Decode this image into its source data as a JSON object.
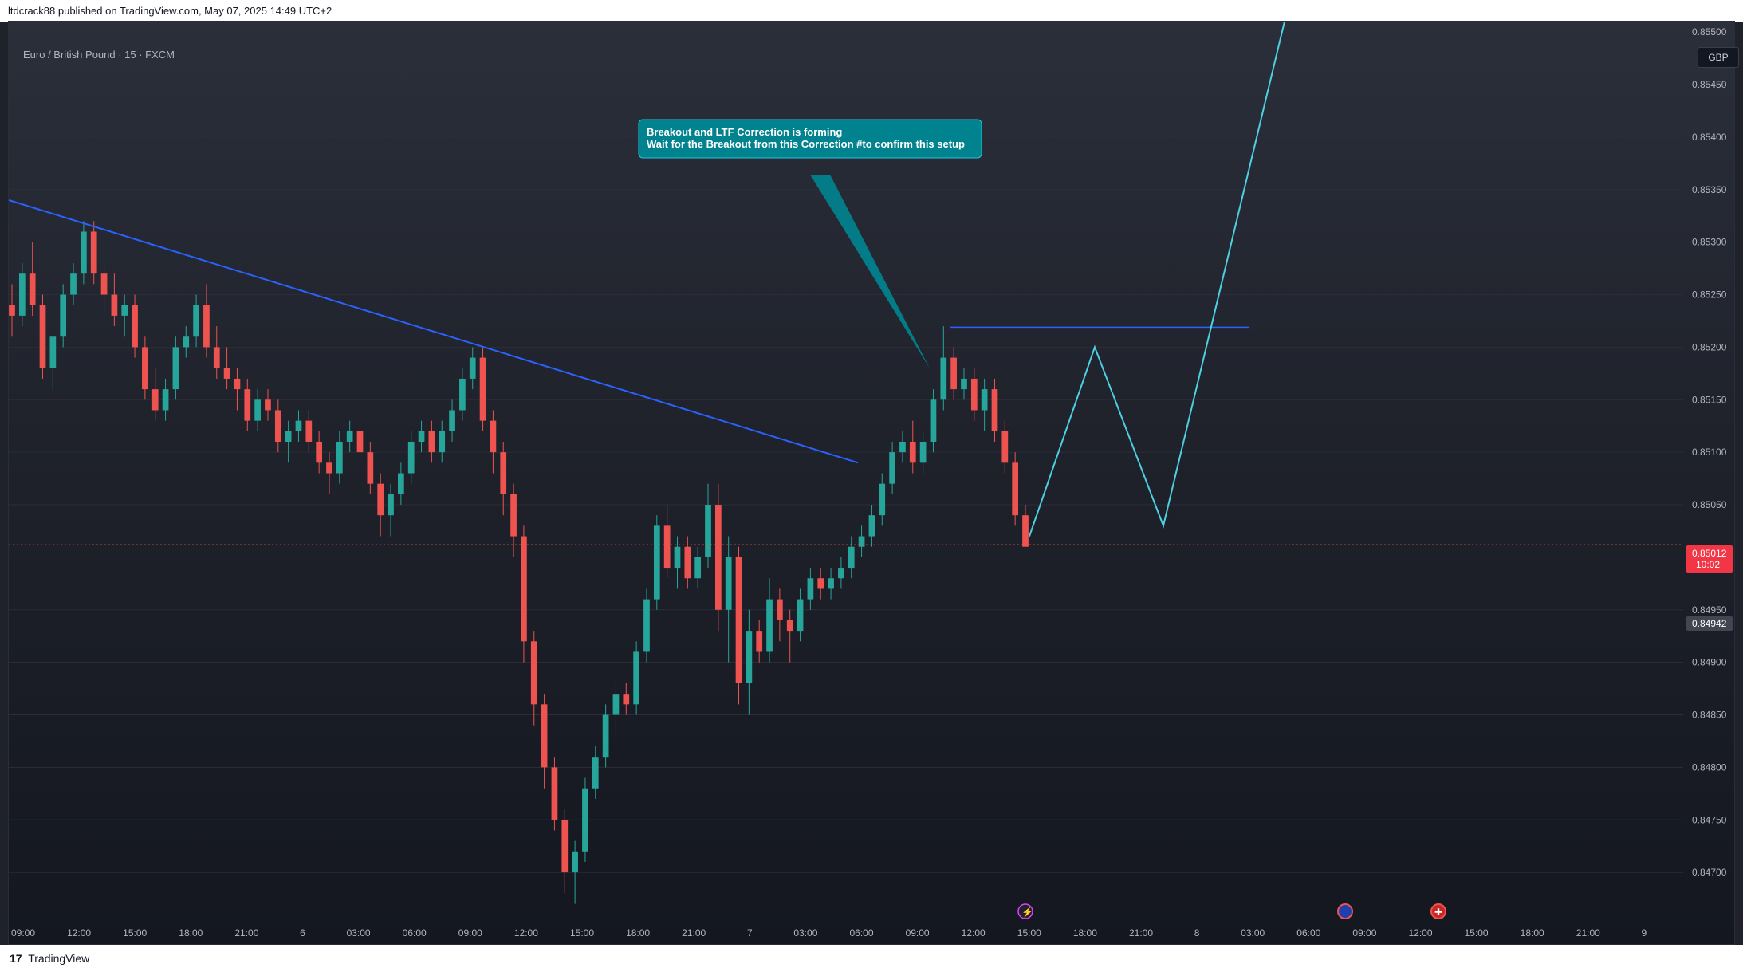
{
  "header": {
    "published_text": "ltdcrack88 published on TradingView.com, May 07, 2025 14:49 UTC+2"
  },
  "symbol": {
    "label": "Euro / British Pound · 15 · FXCM"
  },
  "currency": {
    "label": "GBP"
  },
  "footer": {
    "logo_text": "17",
    "brand": "TradingView"
  },
  "annotation": {
    "line1": "Breakout and LTF Correction is forming",
    "line2": "Wait for the Breakout from this Correction #to confirm this setup"
  },
  "price_badges": {
    "current_price": "0.85012",
    "countdown": "10:02",
    "marker_price": "0.84942"
  },
  "colors": {
    "up": "#26a69a",
    "down": "#ef5350",
    "trendline": "#2962ff",
    "projection": "#4dd0e1",
    "callout": "#00838f"
  },
  "icons": [
    "lightning-event-icon",
    "eu-flag-event-icon",
    "uk-flag-event-icon"
  ],
  "chart_data": {
    "type": "candlestick",
    "title": "Euro / British Pound · 15 · FXCM",
    "xlabel": "",
    "ylabel": "",
    "ylim": [
      0.8465,
      0.8551
    ],
    "y_ticks": [
      "0.85500",
      "0.85450",
      "0.85400",
      "0.85350",
      "0.85300",
      "0.85250",
      "0.85200",
      "0.85150",
      "0.85100",
      "0.85050",
      "0.84950",
      "0.84900",
      "0.84850",
      "0.84800",
      "0.84750",
      "0.84700"
    ],
    "x_ticks": [
      "09:00",
      "12:00",
      "15:00",
      "18:00",
      "21:00",
      "6",
      "03:00",
      "06:00",
      "09:00",
      "12:00",
      "15:00",
      "18:00",
      "21:00",
      "7",
      "03:00",
      "06:00",
      "09:00",
      "12:00",
      "15:00",
      "18:00",
      "21:00",
      "8",
      "03:00",
      "06:00",
      "09:00",
      "12:00",
      "15:00",
      "18:00",
      "21:00",
      "9"
    ],
    "candles_ohlc": [
      [
        0.8524,
        0.8526,
        0.8521,
        0.8523
      ],
      [
        0.8523,
        0.8528,
        0.8522,
        0.8527
      ],
      [
        0.8527,
        0.853,
        0.8523,
        0.8524
      ],
      [
        0.8524,
        0.8525,
        0.8517,
        0.8518
      ],
      [
        0.8518,
        0.852,
        0.8516,
        0.8521
      ],
      [
        0.8521,
        0.8526,
        0.852,
        0.8525
      ],
      [
        0.8525,
        0.8528,
        0.8524,
        0.8527
      ],
      [
        0.8527,
        0.8532,
        0.8526,
        0.8531
      ],
      [
        0.8531,
        0.8532,
        0.8526,
        0.8527
      ],
      [
        0.8527,
        0.8528,
        0.8523,
        0.8525
      ],
      [
        0.8525,
        0.8527,
        0.8522,
        0.8523
      ],
      [
        0.8523,
        0.8525,
        0.8521,
        0.8524
      ],
      [
        0.8524,
        0.8525,
        0.8519,
        0.852
      ],
      [
        0.852,
        0.8521,
        0.8515,
        0.8516
      ],
      [
        0.8516,
        0.8518,
        0.8513,
        0.8514
      ],
      [
        0.8514,
        0.8517,
        0.8513,
        0.8516
      ],
      [
        0.8516,
        0.8521,
        0.8515,
        0.852
      ],
      [
        0.852,
        0.8522,
        0.8519,
        0.8521
      ],
      [
        0.8521,
        0.8525,
        0.852,
        0.8524
      ],
      [
        0.8524,
        0.8526,
        0.8519,
        0.852
      ],
      [
        0.852,
        0.8522,
        0.8517,
        0.8518
      ],
      [
        0.8518,
        0.852,
        0.8516,
        0.8517
      ],
      [
        0.8517,
        0.8518,
        0.8514,
        0.8516
      ],
      [
        0.8516,
        0.8517,
        0.8512,
        0.8513
      ],
      [
        0.8513,
        0.8516,
        0.8512,
        0.8515
      ],
      [
        0.8515,
        0.8516,
        0.8513,
        0.8514
      ],
      [
        0.8514,
        0.8515,
        0.851,
        0.8511
      ],
      [
        0.8511,
        0.8513,
        0.8509,
        0.8512
      ],
      [
        0.8512,
        0.8514,
        0.8511,
        0.8513
      ],
      [
        0.8513,
        0.8514,
        0.851,
        0.8511
      ],
      [
        0.8511,
        0.8512,
        0.8508,
        0.8509
      ],
      [
        0.8509,
        0.851,
        0.8506,
        0.8508
      ],
      [
        0.8508,
        0.8512,
        0.8507,
        0.8511
      ],
      [
        0.8511,
        0.8513,
        0.851,
        0.8512
      ],
      [
        0.8512,
        0.8513,
        0.8509,
        0.851
      ],
      [
        0.851,
        0.8511,
        0.8506,
        0.8507
      ],
      [
        0.8507,
        0.8508,
        0.8502,
        0.8504
      ],
      [
        0.8504,
        0.8507,
        0.8502,
        0.8506
      ],
      [
        0.8506,
        0.8509,
        0.8505,
        0.8508
      ],
      [
        0.8508,
        0.8512,
        0.8507,
        0.8511
      ],
      [
        0.8511,
        0.8513,
        0.851,
        0.8512
      ],
      [
        0.8512,
        0.8513,
        0.8509,
        0.851
      ],
      [
        0.851,
        0.8513,
        0.8509,
        0.8512
      ],
      [
        0.8512,
        0.8515,
        0.8511,
        0.8514
      ],
      [
        0.8514,
        0.8518,
        0.8513,
        0.8517
      ],
      [
        0.8517,
        0.852,
        0.8516,
        0.8519
      ],
      [
        0.8519,
        0.852,
        0.8512,
        0.8513
      ],
      [
        0.8513,
        0.8514,
        0.8508,
        0.851
      ],
      [
        0.851,
        0.8511,
        0.8504,
        0.8506
      ],
      [
        0.8506,
        0.8507,
        0.85,
        0.8502
      ],
      [
        0.8502,
        0.8503,
        0.849,
        0.8492
      ],
      [
        0.8492,
        0.8493,
        0.8484,
        0.8486
      ],
      [
        0.8486,
        0.8487,
        0.8478,
        0.848
      ],
      [
        0.848,
        0.8481,
        0.8474,
        0.8475
      ],
      [
        0.8475,
        0.8476,
        0.8468,
        0.847
      ],
      [
        0.847,
        0.8473,
        0.8467,
        0.8472
      ],
      [
        0.8472,
        0.8479,
        0.8471,
        0.8478
      ],
      [
        0.8478,
        0.8482,
        0.8477,
        0.8481
      ],
      [
        0.8481,
        0.8486,
        0.848,
        0.8485
      ],
      [
        0.8485,
        0.8488,
        0.8483,
        0.8487
      ],
      [
        0.8487,
        0.8488,
        0.8485,
        0.8486
      ],
      [
        0.8486,
        0.8492,
        0.8485,
        0.8491
      ],
      [
        0.8491,
        0.8497,
        0.849,
        0.8496
      ],
      [
        0.8496,
        0.8504,
        0.8495,
        0.8503
      ],
      [
        0.8503,
        0.8505,
        0.8498,
        0.8499
      ],
      [
        0.8499,
        0.8502,
        0.8497,
        0.8501
      ],
      [
        0.8501,
        0.8502,
        0.8497,
        0.8498
      ],
      [
        0.8498,
        0.8501,
        0.8497,
        0.85
      ],
      [
        0.85,
        0.8507,
        0.8499,
        0.8505
      ],
      [
        0.8505,
        0.8507,
        0.8493,
        0.8495
      ],
      [
        0.8495,
        0.8502,
        0.849,
        0.85
      ],
      [
        0.85,
        0.8501,
        0.8486,
        0.8488
      ],
      [
        0.8488,
        0.8495,
        0.8485,
        0.8493
      ],
      [
        0.8493,
        0.8494,
        0.849,
        0.8491
      ],
      [
        0.8491,
        0.8498,
        0.849,
        0.8496
      ],
      [
        0.8496,
        0.8497,
        0.8492,
        0.8494
      ],
      [
        0.8494,
        0.8495,
        0.849,
        0.8493
      ],
      [
        0.8493,
        0.8497,
        0.8492,
        0.8496
      ],
      [
        0.8496,
        0.8499,
        0.8495,
        0.8498
      ],
      [
        0.8498,
        0.8499,
        0.8496,
        0.8497
      ],
      [
        0.8497,
        0.8499,
        0.8496,
        0.8498
      ],
      [
        0.8498,
        0.85,
        0.8497,
        0.8499
      ],
      [
        0.8499,
        0.8502,
        0.8498,
        0.8501
      ],
      [
        0.8501,
        0.8503,
        0.85,
        0.8502
      ],
      [
        0.8502,
        0.8505,
        0.8501,
        0.8504
      ],
      [
        0.8504,
        0.8508,
        0.8503,
        0.8507
      ],
      [
        0.8507,
        0.8511,
        0.8506,
        0.851
      ],
      [
        0.851,
        0.8512,
        0.8509,
        0.8511
      ],
      [
        0.8511,
        0.8513,
        0.8508,
        0.8509
      ],
      [
        0.8509,
        0.8512,
        0.8508,
        0.8511
      ],
      [
        0.8511,
        0.8516,
        0.851,
        0.8515
      ],
      [
        0.8515,
        0.8522,
        0.8514,
        0.8519
      ],
      [
        0.8519,
        0.852,
        0.8515,
        0.8516
      ],
      [
        0.8516,
        0.8518,
        0.8515,
        0.8517
      ],
      [
        0.8517,
        0.8518,
        0.8513,
        0.8514
      ],
      [
        0.8514,
        0.8517,
        0.8512,
        0.8516
      ],
      [
        0.8516,
        0.8517,
        0.8511,
        0.8512
      ],
      [
        0.8512,
        0.8513,
        0.8508,
        0.8509
      ],
      [
        0.8509,
        0.851,
        0.8503,
        0.8504
      ],
      [
        0.8504,
        0.8505,
        0.8501,
        0.8501
      ]
    ],
    "horizontal_level": 0.85012,
    "trendline": {
      "from_x": "05:00",
      "from_y": 0.8534,
      "to_x": "05:00",
      "to_y": 0.8509
    },
    "resistance_level": 0.85219,
    "projection_path_y": [
      0.8502,
      0.852,
      0.8503,
      0.8558
    ]
  }
}
